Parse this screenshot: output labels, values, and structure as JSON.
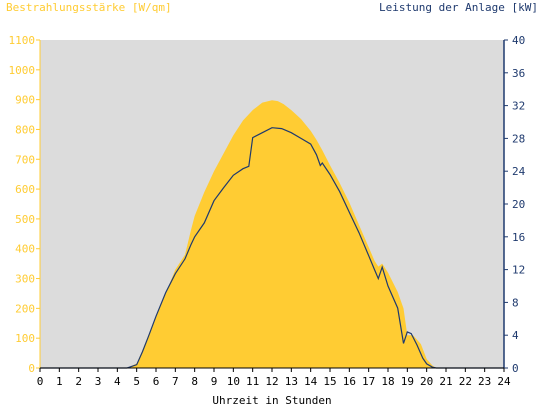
{
  "chart_data": {
    "type": "area",
    "y_left_label": "Bestrahlungsstärke [W/qm]",
    "y_right_label": "Leistung der Anlage [kW]",
    "xlabel": "Uhrzeit in Stunden",
    "x_ticks": [
      "0",
      "1",
      "2",
      "3",
      "4",
      "5",
      "6",
      "7",
      "8",
      "9",
      "10",
      "11",
      "12",
      "13",
      "14",
      "15",
      "16",
      "17",
      "18",
      "19",
      "20",
      "21",
      "22",
      "23",
      "24"
    ],
    "y_left_ticks": [
      "0",
      "100",
      "200",
      "300",
      "400",
      "500",
      "600",
      "700",
      "800",
      "900",
      "1000",
      "1100"
    ],
    "y_right_ticks": [
      "0",
      "4",
      "8",
      "12",
      "16",
      "20",
      "24",
      "28",
      "32",
      "36",
      "40"
    ],
    "xlim": [
      0,
      24
    ],
    "y_left_lim": [
      0,
      1100
    ],
    "y_right_lim": [
      0,
      40
    ],
    "grid": false,
    "colors": {
      "irradiance": "#FFCC33",
      "power": "#1F3A6E",
      "plot_bg": "#DCDCDC",
      "left_axis_text": "#FFCC33",
      "right_axis_text": "#1F3A6E"
    },
    "series": [
      {
        "name": "Bestrahlungsstärke [W/qm]",
        "axis": "left",
        "style": "area",
        "x": [
          0,
          4.5,
          5.0,
          5.3,
          5.6,
          6.0,
          6.5,
          7.0,
          7.5,
          7.8,
          8.0,
          8.5,
          9.0,
          9.5,
          10.0,
          10.5,
          11.0,
          11.5,
          12.0,
          12.3,
          12.6,
          13.0,
          13.5,
          14.0,
          14.3,
          14.6,
          15.0,
          15.5,
          16.0,
          16.5,
          17.0,
          17.3,
          17.5,
          17.7,
          18.0,
          18.5,
          18.8,
          19.0,
          19.3,
          19.7,
          20.0,
          20.3,
          20.5,
          24
        ],
        "y": [
          0,
          0,
          15,
          60,
          110,
          170,
          250,
          330,
          380,
          460,
          510,
          590,
          660,
          720,
          780,
          830,
          865,
          890,
          898,
          895,
          885,
          865,
          835,
          795,
          765,
          730,
          680,
          620,
          555,
          480,
          405,
          360,
          340,
          350,
          320,
          255,
          200,
          110,
          110,
          80,
          30,
          8,
          0,
          0
        ]
      },
      {
        "name": "Leistung der Anlage [kW]",
        "axis": "right",
        "style": "line",
        "x": [
          0,
          4.5,
          5.0,
          5.3,
          5.6,
          6.0,
          6.5,
          7.0,
          7.5,
          7.8,
          8.0,
          8.5,
          9.0,
          9.5,
          10.0,
          10.5,
          10.8,
          11.0,
          11.5,
          12.0,
          12.5,
          13.0,
          13.5,
          14.0,
          14.3,
          14.5,
          14.6,
          15.0,
          15.5,
          16.0,
          16.5,
          17.0,
          17.3,
          17.5,
          17.7,
          18.0,
          18.5,
          18.8,
          19.0,
          19.2,
          19.5,
          19.8,
          20.0,
          20.3,
          20.5,
          24
        ],
        "y": [
          0,
          0,
          0.4,
          2.0,
          3.8,
          6.3,
          9.2,
          11.5,
          13.3,
          15.0,
          16.0,
          17.7,
          20.4,
          22.0,
          23.5,
          24.3,
          24.6,
          28.1,
          28.7,
          29.3,
          29.2,
          28.7,
          28.0,
          27.3,
          26.0,
          24.7,
          25.0,
          23.6,
          21.5,
          19.0,
          16.5,
          13.7,
          12.0,
          10.9,
          12.3,
          10.0,
          7.3,
          3.0,
          4.4,
          4.2,
          2.8,
          1.2,
          0.5,
          0.1,
          0,
          0
        ]
      }
    ]
  }
}
